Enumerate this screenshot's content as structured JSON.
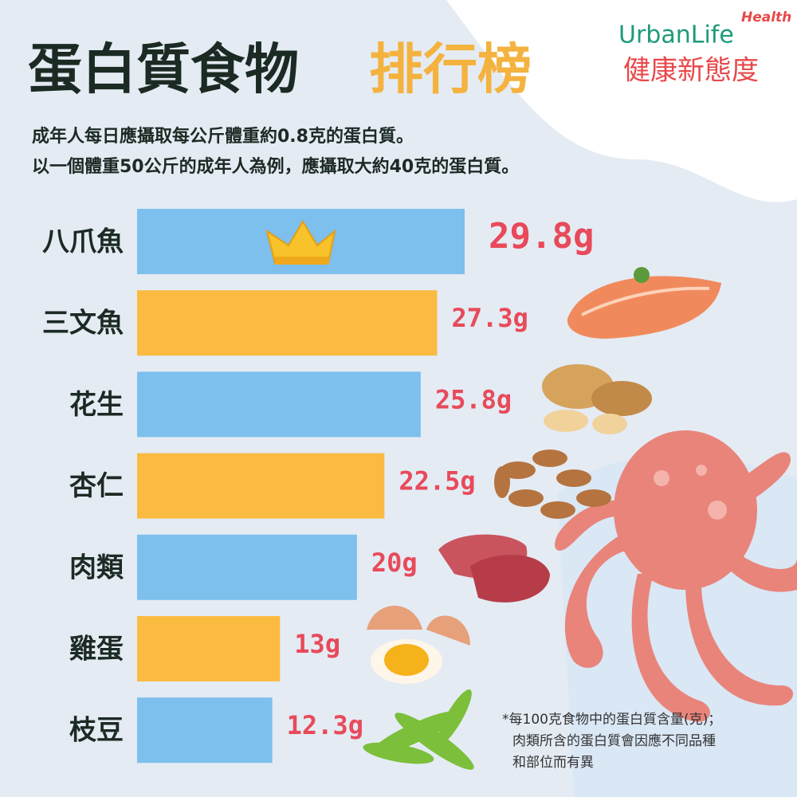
{
  "chart_data": {
    "type": "bar",
    "title": [
      "蛋白質食物",
      "排行榜"
    ],
    "subtitle": [
      "成年人每日應攝取每公斤體重約0.8克的蛋白質。",
      "以一個體重50公斤的成年人為例，應攝取大約40克的蛋白質。"
    ],
    "logo": {
      "brand": "UrbanLife",
      "tag": "Health",
      "slogan": "健康新態度"
    },
    "categories": [
      "八爪魚",
      "三文魚",
      "花生",
      "杏仁",
      "肉類",
      "雞蛋",
      "枝豆"
    ],
    "values": [
      29.8,
      27.3,
      25.8,
      22.5,
      20,
      13,
      12.3
    ],
    "value_labels": [
      "29.8g",
      "27.3g",
      "25.8g",
      "22.5g",
      "20g",
      "13g",
      "12.3g"
    ],
    "colors": [
      "#7dbfed",
      "#fbbb41",
      "#7dbfed",
      "#fbbb41",
      "#7dbfed",
      "#fbbb41",
      "#7dbfed"
    ],
    "footnote": [
      "*每100克食物中的蛋白質含量(克)；",
      "肉類所含的蛋白質會因應不同品種",
      "和部位而有異"
    ]
  }
}
